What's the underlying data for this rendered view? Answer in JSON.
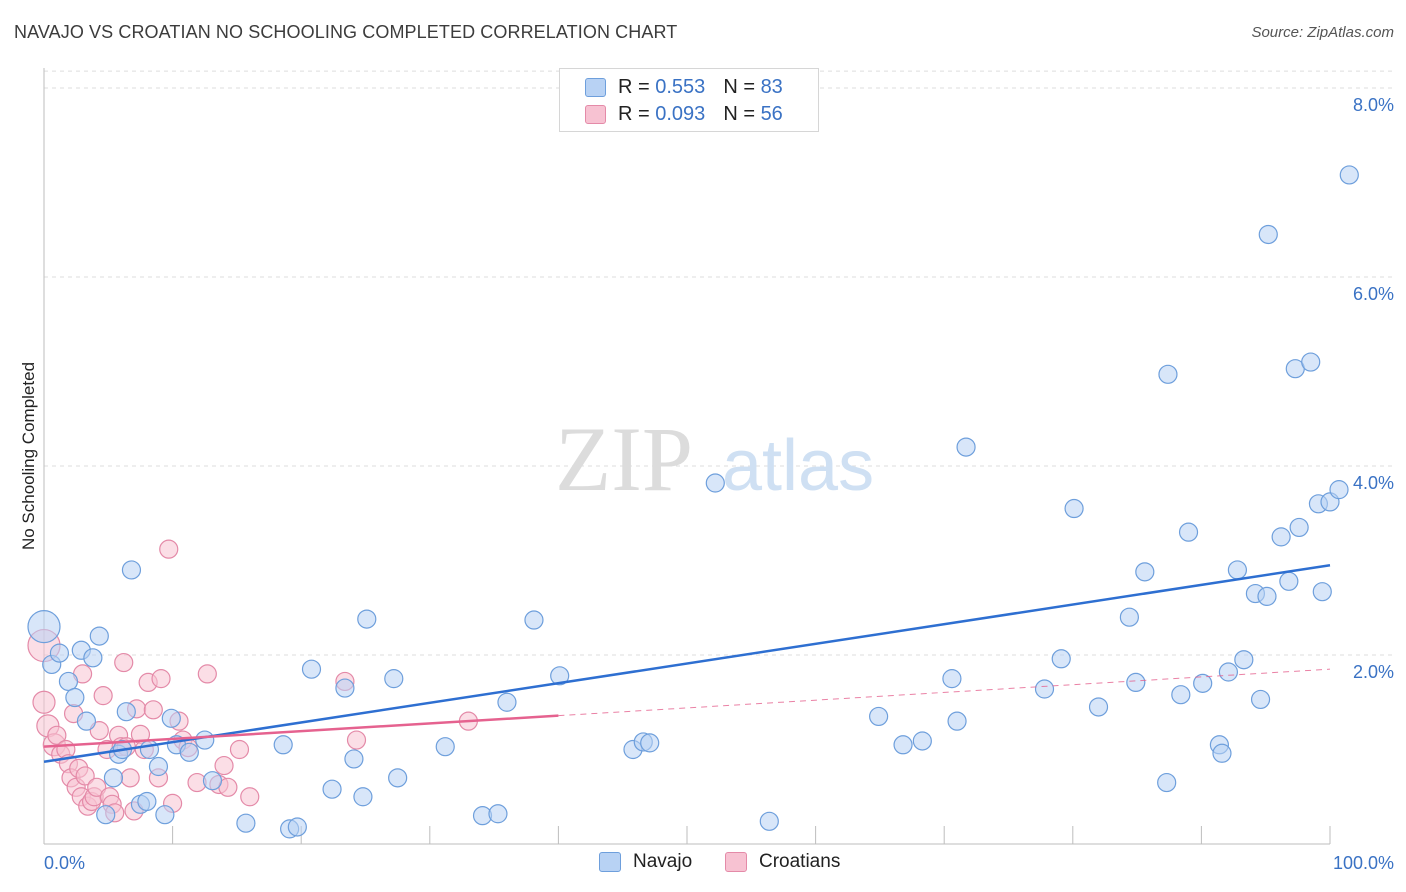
{
  "title": "NAVAJO VS CROATIAN NO SCHOOLING COMPLETED CORRELATION CHART",
  "source": "Source: ZipAtlas.com",
  "colors": {
    "navajo_fill": "#b8d2f4",
    "navajo_stroke": "#6e9fdc",
    "navajo_line": "#2e6fd1",
    "croatian_fill": "#f7c2d2",
    "croatian_stroke": "#e48aa8",
    "croatian_line": "#e5628f",
    "axis_label": "#3a72c4",
    "grid": "#dedede"
  },
  "legend": {
    "rows": [
      {
        "series": "Navajo",
        "r_label": "R = ",
        "r_value": "0.553",
        "n_label": "N = ",
        "n_value": "83"
      },
      {
        "series": "Croatians",
        "r_label": "R = ",
        "r_value": "0.093",
        "n_label": "N = ",
        "n_value": "56"
      }
    ]
  },
  "chart_data": {
    "type": "scatter",
    "title": "NAVAJO VS CROATIAN NO SCHOOLING COMPLETED CORRELATION CHART",
    "xlabel": "",
    "ylabel": "No Schooling Completed",
    "xlim": [
      0,
      100
    ],
    "ylim": [
      0,
      8.2
    ],
    "x_tick_labels": [
      "0.0%",
      "100.0%"
    ],
    "y_ticks": [
      2,
      4,
      6,
      8
    ],
    "y_tick_labels": [
      "2.0%",
      "4.0%",
      "6.0%",
      "8.0%"
    ],
    "grid": true,
    "legend_position": "top-center",
    "series": [
      {
        "name": "Navajo",
        "r": 0.553,
        "n": 83,
        "trend": {
          "x0": 0,
          "y0": 0.87,
          "x1": 100,
          "y1": 2.95,
          "solid_until": 100
        },
        "points": [
          [
            0,
            2.3,
            16
          ],
          [
            0.6,
            1.9,
            9
          ],
          [
            1.2,
            2.02,
            9
          ],
          [
            1.9,
            1.72,
            9
          ],
          [
            2.4,
            1.55,
            9
          ],
          [
            2.9,
            2.05,
            9
          ],
          [
            3.3,
            1.3,
            9
          ],
          [
            3.8,
            1.97,
            9
          ],
          [
            4.3,
            2.2,
            9
          ],
          [
            4.8,
            0.31,
            9
          ],
          [
            5.4,
            0.7,
            9
          ],
          [
            5.8,
            0.95,
            9
          ],
          [
            6.1,
            1.0,
            9
          ],
          [
            6.4,
            1.4,
            9
          ],
          [
            6.8,
            2.9,
            9
          ],
          [
            7.5,
            0.42,
            9
          ],
          [
            8.0,
            0.45,
            9
          ],
          [
            8.2,
            1.0,
            9
          ],
          [
            8.9,
            0.82,
            9
          ],
          [
            9.4,
            0.31,
            9
          ],
          [
            9.9,
            1.33,
            9
          ],
          [
            10.3,
            1.05,
            9
          ],
          [
            11.3,
            0.97,
            9
          ],
          [
            12.5,
            1.1,
            9
          ],
          [
            13.1,
            0.67,
            9
          ],
          [
            15.7,
            0.22,
            9
          ],
          [
            18.6,
            1.05,
            9
          ],
          [
            19.1,
            0.16,
            9
          ],
          [
            19.7,
            0.18,
            9
          ],
          [
            20.8,
            1.85,
            9
          ],
          [
            22.4,
            0.58,
            9
          ],
          [
            23.4,
            1.65,
            9
          ],
          [
            24.1,
            0.9,
            9
          ],
          [
            24.8,
            0.5,
            9
          ],
          [
            25.1,
            2.38,
            9
          ],
          [
            27.2,
            1.75,
            9
          ],
          [
            27.5,
            0.7,
            9
          ],
          [
            31.2,
            1.03,
            9
          ],
          [
            34.1,
            0.3,
            9
          ],
          [
            35.3,
            0.32,
            9
          ],
          [
            36.0,
            1.5,
            9
          ],
          [
            38.1,
            2.37,
            9
          ],
          [
            40.1,
            1.78,
            9
          ],
          [
            45.8,
            1.0,
            9
          ],
          [
            46.6,
            1.08,
            9
          ],
          [
            47.1,
            1.07,
            9
          ],
          [
            52.2,
            3.82,
            9
          ],
          [
            56.4,
            0.24,
            9
          ],
          [
            64.9,
            1.35,
            9
          ],
          [
            66.8,
            1.05,
            9
          ],
          [
            68.3,
            1.09,
            9
          ],
          [
            70.6,
            1.75,
            9
          ],
          [
            71.0,
            1.3,
            9
          ],
          [
            71.7,
            4.2,
            9
          ],
          [
            77.8,
            1.64,
            9
          ],
          [
            79.1,
            1.96,
            9
          ],
          [
            80.1,
            3.55,
            9
          ],
          [
            82.0,
            1.45,
            9
          ],
          [
            84.4,
            2.4,
            9
          ],
          [
            84.9,
            1.71,
            9
          ],
          [
            85.6,
            2.88,
            9
          ],
          [
            87.3,
            0.65,
            9
          ],
          [
            87.4,
            4.97,
            9
          ],
          [
            88.4,
            1.58,
            9
          ],
          [
            89.0,
            3.3,
            9
          ],
          [
            90.1,
            1.7,
            9
          ],
          [
            91.4,
            1.05,
            9
          ],
          [
            91.6,
            0.96,
            9
          ],
          [
            92.1,
            1.82,
            9
          ],
          [
            92.8,
            2.9,
            9
          ],
          [
            93.3,
            1.95,
            9
          ],
          [
            94.2,
            2.65,
            9
          ],
          [
            94.6,
            1.53,
            9
          ],
          [
            95.1,
            2.62,
            9
          ],
          [
            95.2,
            6.45,
            9
          ],
          [
            96.2,
            3.25,
            9
          ],
          [
            96.8,
            2.78,
            9
          ],
          [
            97.3,
            5.03,
            9
          ],
          [
            97.6,
            3.35,
            9
          ],
          [
            98.5,
            5.1,
            9
          ],
          [
            99.1,
            3.6,
            9
          ],
          [
            99.4,
            2.67,
            9
          ],
          [
            100,
            3.62,
            9
          ],
          [
            100.7,
            3.75,
            9
          ],
          [
            101.5,
            7.08,
            9
          ]
        ]
      },
      {
        "name": "Croatians",
        "r": 0.093,
        "n": 56,
        "trend": {
          "x0": 0,
          "y0": 1.03,
          "x1": 100,
          "y1": 1.85,
          "solid_until": 40
        },
        "points": [
          [
            0,
            2.1,
            16
          ],
          [
            0,
            1.5,
            11
          ],
          [
            0.3,
            1.25,
            11
          ],
          [
            0.8,
            1.05,
            11
          ],
          [
            1.0,
            1.15,
            9
          ],
          [
            1.3,
            0.95,
            9
          ],
          [
            1.7,
            1.0,
            9
          ],
          [
            1.9,
            0.85,
            9
          ],
          [
            2.1,
            0.7,
            9
          ],
          [
            2.3,
            1.38,
            9
          ],
          [
            2.5,
            0.6,
            9
          ],
          [
            2.7,
            0.8,
            9
          ],
          [
            2.9,
            0.5,
            9
          ],
          [
            3.0,
            1.8,
            9
          ],
          [
            3.2,
            0.72,
            9
          ],
          [
            3.4,
            0.4,
            9
          ],
          [
            3.7,
            0.45,
            9
          ],
          [
            3.9,
            0.5,
            9
          ],
          [
            4.1,
            0.6,
            9
          ],
          [
            4.3,
            1.2,
            9
          ],
          [
            4.6,
            1.57,
            9
          ],
          [
            4.9,
            1.0,
            9
          ],
          [
            5.1,
            0.5,
            9
          ],
          [
            5.3,
            0.42,
            9
          ],
          [
            5.5,
            0.33,
            9
          ],
          [
            5.8,
            1.15,
            9
          ],
          [
            6.0,
            1.03,
            9
          ],
          [
            6.2,
            1.92,
            9
          ],
          [
            6.4,
            1.03,
            9
          ],
          [
            6.7,
            0.7,
            9
          ],
          [
            7.0,
            0.35,
            9
          ],
          [
            7.2,
            1.43,
            9
          ],
          [
            7.5,
            1.16,
            9
          ],
          [
            7.8,
            1.0,
            9
          ],
          [
            8.1,
            1.71,
            9
          ],
          [
            8.5,
            1.42,
            9
          ],
          [
            8.9,
            0.7,
            9
          ],
          [
            9.1,
            1.75,
            9
          ],
          [
            9.7,
            3.12,
            9
          ],
          [
            10.0,
            0.43,
            9
          ],
          [
            10.5,
            1.3,
            9
          ],
          [
            10.8,
            1.1,
            9
          ],
          [
            11.2,
            1.02,
            9
          ],
          [
            11.9,
            0.65,
            9
          ],
          [
            12.7,
            1.8,
            9
          ],
          [
            13.6,
            0.63,
            9
          ],
          [
            14.0,
            0.83,
            9
          ],
          [
            14.3,
            0.6,
            9
          ],
          [
            15.2,
            1.0,
            9
          ],
          [
            16.0,
            0.5,
            9
          ],
          [
            23.4,
            1.72,
            9
          ],
          [
            24.3,
            1.1,
            9
          ],
          [
            33.0,
            1.3,
            9
          ]
        ]
      }
    ]
  },
  "watermark": {
    "zip": "ZIP",
    "atlas": "atlas"
  },
  "bottom_legend": [
    {
      "label": "Navajo"
    },
    {
      "label": "Croatians"
    }
  ]
}
